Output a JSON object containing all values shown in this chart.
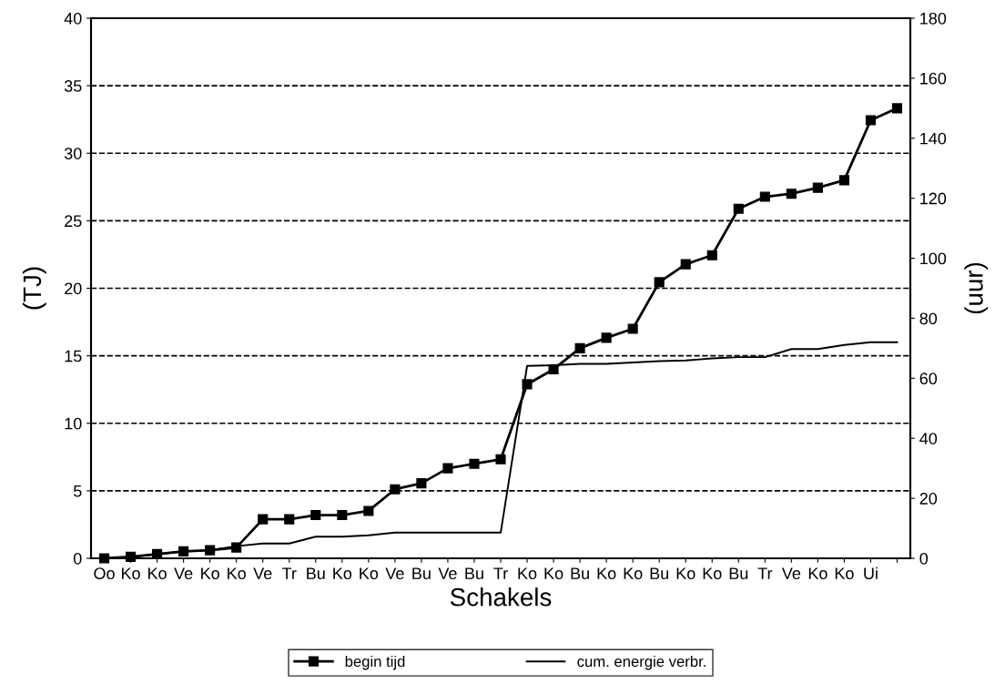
{
  "chart_data": {
    "type": "line",
    "xlabel": "Schakels",
    "ylabel": "(TJ)",
    "y2label": "(uur)",
    "categories": [
      "Oo",
      "Ko",
      "Ko",
      "Ve",
      "Ko",
      "Ko",
      "Ve",
      "Tr",
      "Bu",
      "Ko",
      "Ko",
      "Ve",
      "Bu",
      "Ve",
      "Bu",
      "Tr",
      "Ko",
      "Ko",
      "Bu",
      "Ko",
      "Ko",
      "Bu",
      "Ko",
      "Ko",
      "Bu",
      "Tr",
      "Ve",
      "Ko",
      "Ko",
      "Ui",
      null
    ],
    "series": [
      {
        "name": "begin tijd",
        "color": "#000000",
        "axis": "y2",
        "marker": "square",
        "values": [
          0,
          0.5,
          1.4,
          2.3,
          2.7,
          3.6,
          13,
          13,
          14.4,
          14.4,
          15.8,
          23,
          25,
          30,
          31.5,
          33,
          58,
          63,
          70,
          73.5,
          76.5,
          92,
          98,
          101,
          116.5,
          120.5,
          121.5,
          123.5,
          126,
          146,
          150
        ]
      },
      {
        "name": "cum. energie verbr.",
        "color": "#000000",
        "marker": "none",
        "values": [
          0,
          0.1,
          0.3,
          0.5,
          0.6,
          0.9,
          1.1,
          1.1,
          1.6,
          1.6,
          1.7,
          1.9,
          1.9,
          1.9,
          1.9,
          1.9,
          14.25,
          14.3,
          14.4,
          14.4,
          14.5,
          14.6,
          14.65,
          14.8,
          14.9,
          14.9,
          15.5,
          15.5,
          15.8,
          16,
          16
        ]
      }
    ],
    "ylim": [
      0,
      40
    ],
    "yticks": [
      0,
      5,
      10,
      15,
      20,
      25,
      30,
      35,
      40
    ],
    "y2lim": [
      0,
      180
    ],
    "y2ticks": [
      0,
      20,
      40,
      60,
      80,
      100,
      120,
      140,
      160,
      180
    ],
    "grid": "y",
    "legend": "bottom",
    "line_style": "solid"
  }
}
